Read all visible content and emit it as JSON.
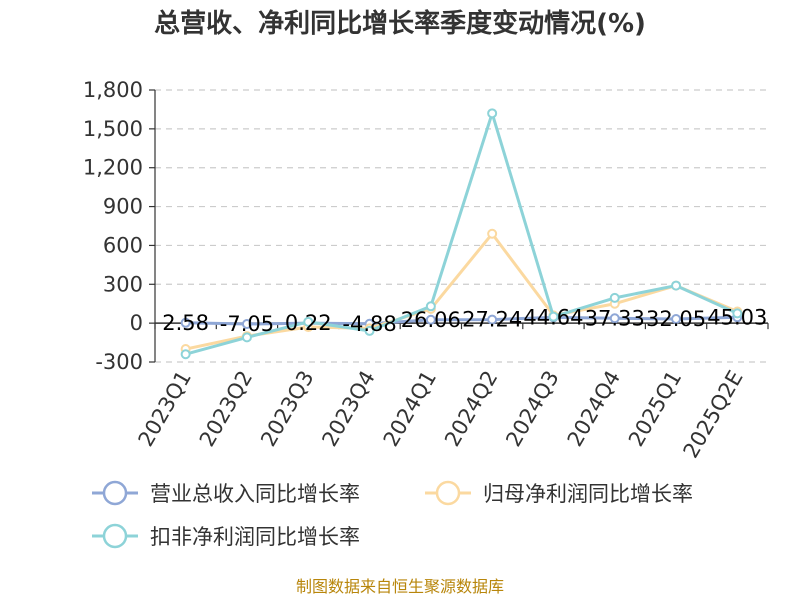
{
  "chart_data": {
    "type": "line",
    "title": "总营收、净利同比增长率季度变动情况(%)",
    "categories": [
      "2023Q1",
      "2023Q2",
      "2023Q3",
      "2023Q4",
      "2024Q1",
      "2024Q2",
      "2024Q3",
      "2024Q4",
      "2025Q1",
      "2025Q2E"
    ],
    "ylim": [
      -300,
      1800
    ],
    "yticks": [
      -300,
      0,
      300,
      600,
      900,
      1200,
      1500,
      1800
    ],
    "ytick_labels": [
      "-300",
      "0",
      "300",
      "600",
      "900",
      "1,200",
      "1,500",
      "1,800"
    ],
    "grid": true,
    "legend_position": "bottom",
    "series": [
      {
        "name": "营业总收入同比增长率",
        "color": "#8fa7d6",
        "values": [
          2.58,
          -7.05,
          0.22,
          -4.88,
          26.06,
          27.24,
          44.64,
          37.33,
          32.05,
          45.03
        ],
        "labels": [
          "2.58",
          "-7.05",
          "0.22",
          "-4.88",
          "26.06",
          "27.24",
          "44.64",
          "37.33",
          "32.05",
          "45.03"
        ]
      },
      {
        "name": "归母净利润同比增长率",
        "color": "#fbd9a0",
        "values": [
          -200,
          -100,
          -30,
          -40,
          110,
          690,
          60,
          150,
          290,
          90
        ]
      },
      {
        "name": "扣非净利润同比增长率",
        "color": "#8dd3d8",
        "values": [
          -240,
          -110,
          10,
          -60,
          130,
          1620,
          50,
          195,
          290,
          75
        ]
      }
    ],
    "source": "制图数据来自恒生聚源数据库"
  }
}
